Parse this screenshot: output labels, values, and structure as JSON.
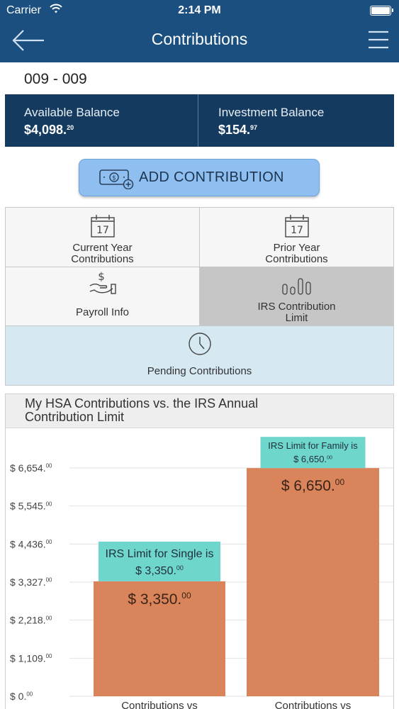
{
  "status_bar": {
    "carrier": "Carrier",
    "time": "2:14 PM"
  },
  "nav": {
    "title": "Contributions"
  },
  "account": {
    "number": "009 - 009"
  },
  "balances": {
    "available": {
      "label": "Available Balance",
      "amount": "$4,098.",
      "cents": "20"
    },
    "investment": {
      "label": "Investment Balance",
      "amount": "$154.",
      "cents": "97"
    }
  },
  "add_button": {
    "label": "ADD CONTRIBUTION"
  },
  "menu_tiles": [
    {
      "label": "Current Year Contributions",
      "line1": "Current Year",
      "line2": "Contributions",
      "icon": "calendar-icon",
      "icon_text": "17"
    },
    {
      "label": "Prior Year Contributions",
      "line1": "Prior Year",
      "line2": "Contributions",
      "icon": "calendar-icon",
      "icon_text": "17"
    },
    {
      "label": "Payroll Info",
      "line1": "Payroll Info",
      "line2": "",
      "icon": "money-hand-icon"
    },
    {
      "label": "IRS Contribution Limit",
      "line1": "IRS Contribution",
      "line2": "Limit",
      "icon": "bar-chart-icon"
    },
    {
      "label": "Pending Contributions",
      "line1": "Pending Contributions",
      "line2": "",
      "icon": "clock-icon"
    }
  ],
  "colors": {
    "nav": "#1b4f80",
    "balance_bar": "#143b5f",
    "add_button": "#8ebff0",
    "selected_tile": "#c6c6c6",
    "pending_tile": "#d6e9f2",
    "bar": "#d9845a",
    "limit_label": "#6fd6cd"
  },
  "chart_data": {
    "type": "bar",
    "title": "My HSA Contributions vs. the IRS Annual Contribution Limit",
    "title_line1": "My HSA Contributions vs. the IRS Annual",
    "title_line2": "Contribution Limit",
    "categories": [
      "Contributions vs",
      "Contributions vs"
    ],
    "values": [
      3350,
      6650
    ],
    "value_labels": [
      {
        "whole": "$ 3,350.",
        "cents": "00"
      },
      {
        "whole": "$ 6,650.",
        "cents": "00"
      }
    ],
    "limit_labels": [
      {
        "line1": "IRS Limit for Single is",
        "line2_whole": "$ 3,350.",
        "line2_cents": "00"
      },
      {
        "line1": "IRS Limit for Family is",
        "line2_whole": "$ 6,650.",
        "line2_cents": "00"
      }
    ],
    "yticks": [
      0,
      1109,
      2218,
      3327,
      4436,
      5545,
      6654
    ],
    "ytick_labels": [
      {
        "whole": "$ 0.",
        "cents": "00"
      },
      {
        "whole": "$ 1,109.",
        "cents": "00"
      },
      {
        "whole": "$ 2,218.",
        "cents": "00"
      },
      {
        "whole": "$ 3,327.",
        "cents": "00"
      },
      {
        "whole": "$ 4,436.",
        "cents": "00"
      },
      {
        "whole": "$ 5,545.",
        "cents": "00"
      },
      {
        "whole": "$ 6,654.",
        "cents": "00"
      }
    ],
    "ylim": [
      0,
      6654
    ],
    "grid": true
  }
}
